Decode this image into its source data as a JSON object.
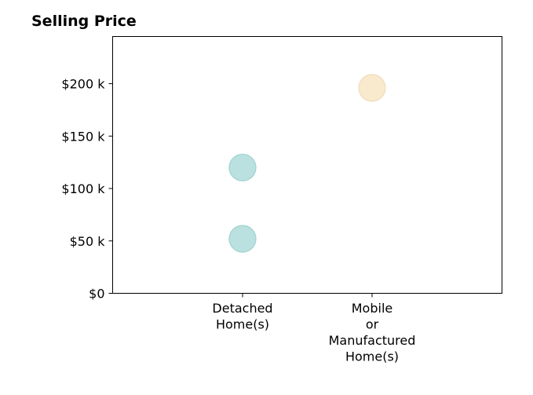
{
  "chart_data": {
    "type": "scatter",
    "title": "Selling Price",
    "xlabel": "",
    "ylabel": "",
    "categories": [
      [
        "Detached",
        "Home(s)"
      ],
      [
        "Mobile",
        "or",
        "Manufactured",
        "Home(s)"
      ]
    ],
    "ylim": [
      0,
      245000
    ],
    "yticks": [
      {
        "value": 0,
        "label": "$0"
      },
      {
        "value": 50000,
        "label": "$50 k"
      },
      {
        "value": 100000,
        "label": "$100 k"
      },
      {
        "value": 150000,
        "label": "$150 k"
      },
      {
        "value": 200000,
        "label": "$200 k"
      }
    ],
    "points": [
      {
        "category": 0,
        "y": 52000,
        "color": "#b2dedc"
      },
      {
        "category": 0,
        "y": 120000,
        "color": "#b2dedc"
      },
      {
        "category": 1,
        "y": 196000,
        "color": "#f8e8c8"
      }
    ],
    "grid": false
  }
}
